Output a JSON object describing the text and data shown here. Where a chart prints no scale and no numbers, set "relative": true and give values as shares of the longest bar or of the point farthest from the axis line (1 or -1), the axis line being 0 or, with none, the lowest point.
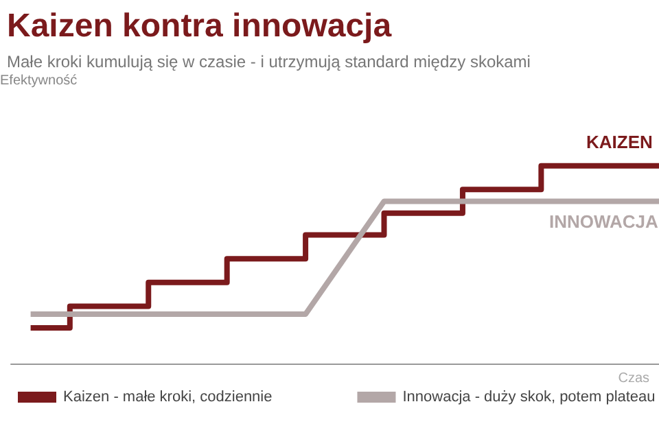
{
  "chart_data": {
    "type": "step",
    "title": "Kaizen kontra innowacja",
    "subtitle": "Małe kroki kumulują się w czasie - i utrzymują standard między skokami",
    "xlabel": "Czas",
    "relative": true,
    "legend": "bottom",
    "marker": "none",
    "categories": [
      null,
      null,
      null,
      null,
      null,
      null,
      null,
      null,
      null,
      null,
      null,
      null,
      null,
      null,
      null,
      null,
      null
    ],
    "series": [
      {
        "name": "Kaizen - małe kroki, codziennie",
        "color": "#7b1a1c",
        "values": [
          0.18,
          0.18,
          0.29,
          0.29,
          0.41,
          0.41,
          0.53,
          0.53,
          0.65,
          0.65,
          0.76,
          0.76,
          0.88,
          0.88,
          1,
          1,
          1
        ]
      },
      {
        "name": "Innowacja - duży skok, potem plateau",
        "type": "line",
        "color": "#b3a7a7",
        "values": [
          0.25,
          0.25,
          0.25,
          0.25,
          0.25,
          0.25,
          0.25,
          0.25,
          null,
          0.82,
          0.82,
          0.82,
          0.82,
          0.82,
          0.82,
          0.82,
          0.82
        ]
      }
    ],
    "annotations": [
      "Efektywność",
      "KAIZEN",
      "INNOWACJA"
    ]
  }
}
